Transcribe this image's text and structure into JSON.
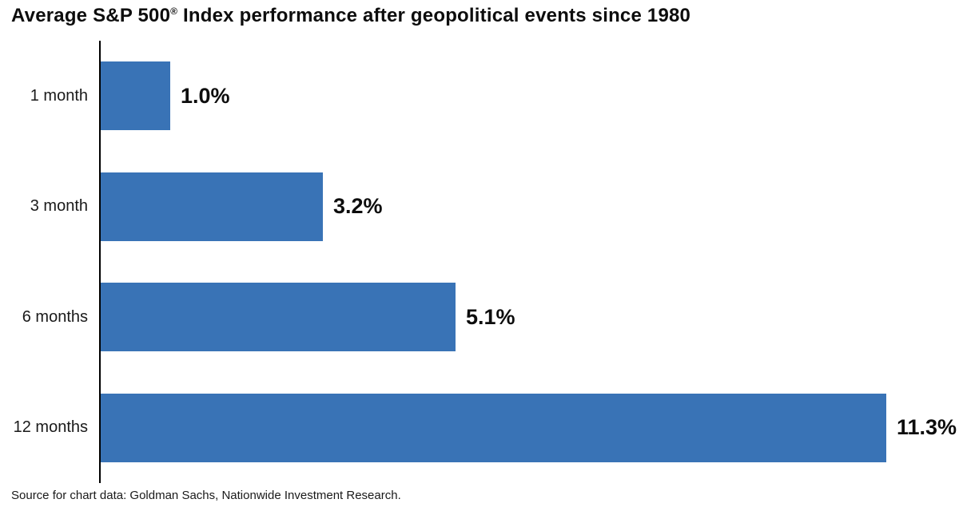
{
  "title": {
    "pre": "Average S&P 500",
    "registered_mark": "®",
    "post": " Index performance after geopolitical events since 1980"
  },
  "source_note": "Source for chart data: Goldman Sachs, Nationwide Investment Research.",
  "colors": {
    "bar": "#3973b6",
    "axis": "#000000",
    "text": "#111111"
  },
  "chart_data": {
    "type": "bar",
    "orientation": "horizontal",
    "title": "Average S&P 500® Index performance after geopolitical events since 1980",
    "categories": [
      "1 month",
      "3 month",
      "6 months",
      "12 months"
    ],
    "values": [
      1.0,
      3.2,
      5.1,
      11.3
    ],
    "value_labels": [
      "1.0%",
      "3.2%",
      "5.1%",
      "11.3%"
    ],
    "unit": "%",
    "xlabel": "",
    "ylabel": "",
    "xlim": [
      0,
      11.3
    ],
    "grid": false,
    "legend": false,
    "source": "Source for chart data: Goldman Sachs, Nationwide Investment Research."
  }
}
